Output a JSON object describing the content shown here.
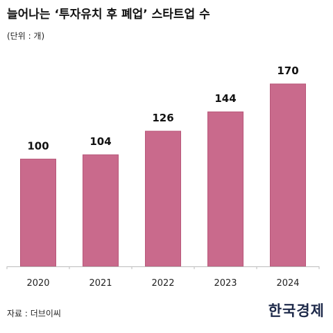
{
  "header": {
    "title": "늘어나는 ‘투자유치 후 폐업’ 스타트업 수",
    "unit": "(단위 : 개)"
  },
  "footer": {
    "source": "자료 : 더브이씨",
    "logo": "한국경제"
  },
  "colors": {
    "bar": "#c96a8c",
    "bar_edge": "#b85679",
    "axis": "#bbbbbb"
  },
  "chart_data": {
    "type": "bar",
    "title": "늘어나는 ‘투자유치 후 폐업’ 스타트업 수",
    "xlabel": "",
    "ylabel": "",
    "categories": [
      "2020",
      "2021",
      "2022",
      "2023",
      "2024"
    ],
    "values": [
      100,
      104,
      126,
      144,
      170
    ],
    "ylim": [
      0,
      170
    ],
    "grid": false,
    "data_labels": true
  }
}
